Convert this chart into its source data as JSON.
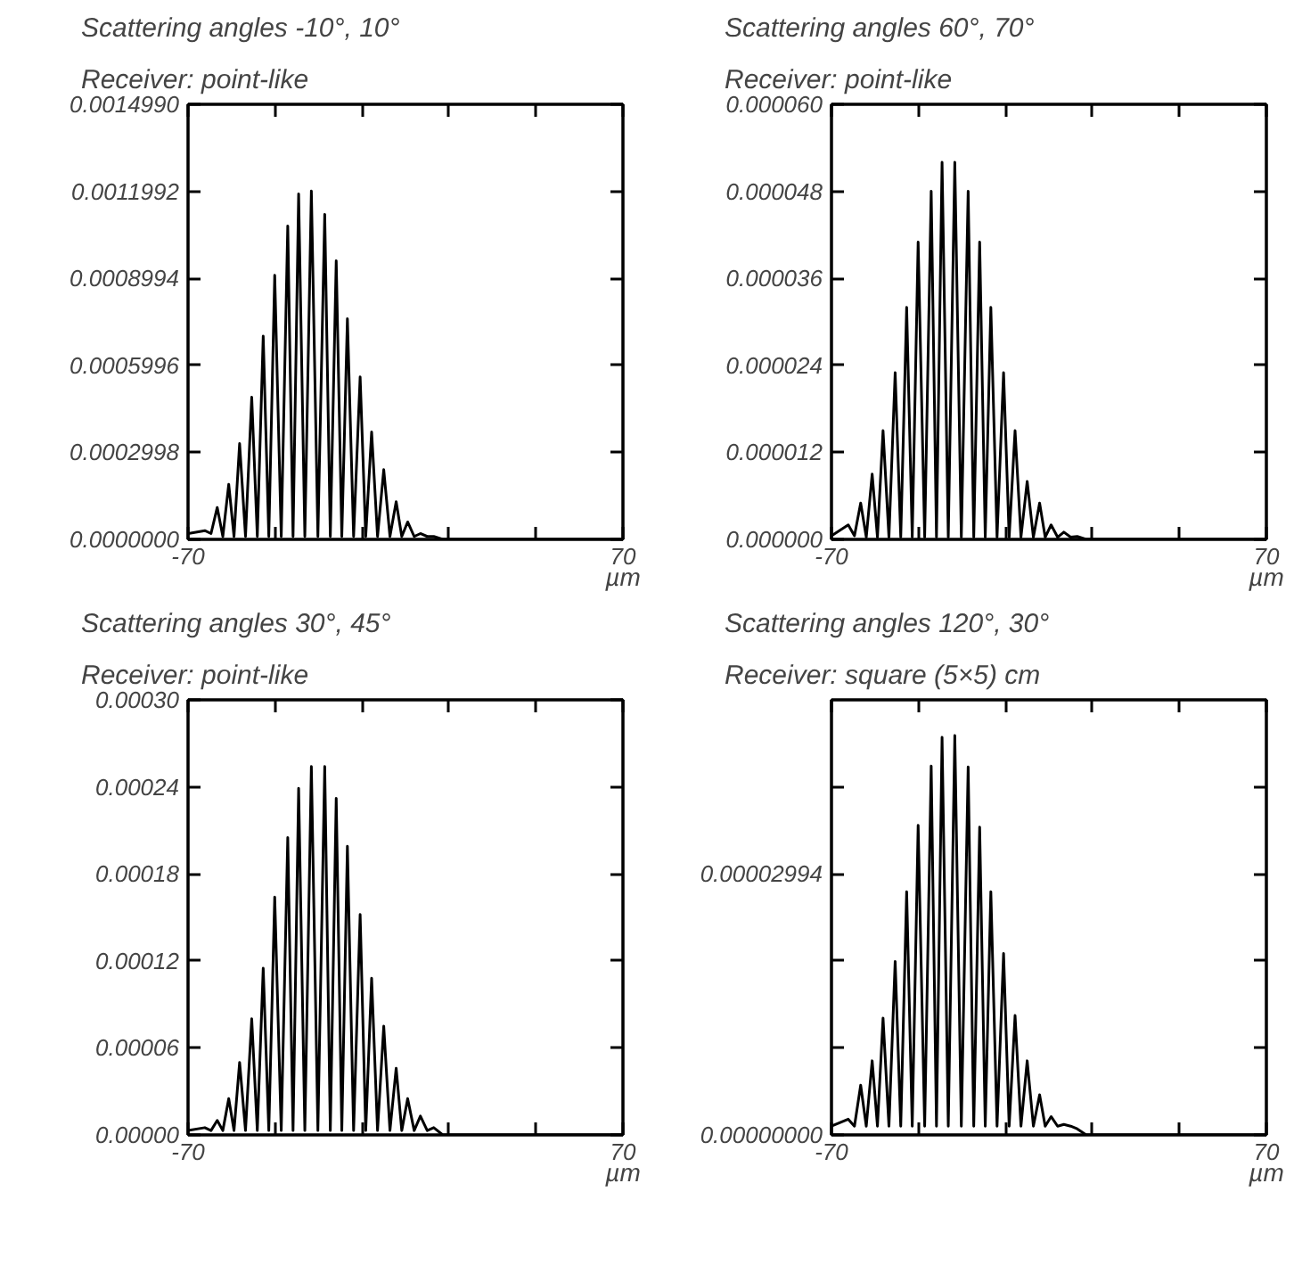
{
  "chart_data": [
    {
      "type": "line",
      "title": "Scattering angles -10°, 10°",
      "subtitle": "Receiver: point-like",
      "xlabel": "µm",
      "color": "#000000",
      "x": [
        -70,
        -64.6,
        -62.6,
        -60.6,
        -58.8,
        -56.9,
        -55.2,
        -53.4,
        -51.5,
        -49.5,
        -47.7,
        -45.8,
        -44.0,
        -42.1,
        -40.0,
        -37.9,
        -36.2,
        -34.4,
        -32.4,
        -30.3,
        -28.2,
        -26.0,
        -24.2,
        -22.3,
        -20.5,
        -18.7,
        -16.7,
        -14.6,
        -12.8,
        -10.9,
        -9.0,
        -7.0,
        -5.0,
        -3.0,
        -1.2,
        0.7,
        2.8,
        4.8,
        7.0,
        9.1,
        12,
        70
      ],
      "values": [
        2e-05,
        3e-05,
        2e-05,
        0.00011,
        1e-05,
        0.00019,
        1e-05,
        0.00033,
        1e-05,
        0.00049,
        1e-05,
        0.0007,
        1e-05,
        0.00091,
        1e-05,
        0.00108,
        1e-05,
        0.00119,
        1e-05,
        0.0012,
        1e-05,
        0.00112,
        1e-05,
        0.00096,
        1e-05,
        0.00076,
        1e-05,
        0.00056,
        1e-05,
        0.00037,
        1e-05,
        0.00024,
        1e-05,
        0.00013,
        1e-05,
        6e-05,
        1e-05,
        2e-05,
        1e-05,
        1e-05,
        0,
        0
      ],
      "xlim": [
        -70,
        70
      ],
      "xticks": [
        -70,
        {
          "value": -42,
          "label": null
        },
        {
          "value": -14,
          "label": null
        },
        {
          "value": 14,
          "label": null
        },
        {
          "value": 42,
          "label": null
        },
        70
      ],
      "ylim": [
        0,
        0.001499
      ],
      "yticks": [
        {
          "value": 0,
          "label": "0.0000000"
        },
        {
          "value": 0.0002998,
          "label": "0.0002998"
        },
        {
          "value": 0.0005996,
          "label": "0.0005996"
        },
        {
          "value": 0.0008994,
          "label": "0.0008994"
        },
        {
          "value": 0.0011992,
          "label": "0.0011992"
        },
        {
          "value": 0.001499,
          "label": "0.0014990"
        }
      ]
    },
    {
      "type": "line",
      "title": "Scattering angles 60°, 70°",
      "subtitle": "Receiver: point-like",
      "xlabel": "µm",
      "color": "#000000",
      "x": [
        -70,
        -64.6,
        -62.6,
        -60.6,
        -58.8,
        -56.9,
        -55.2,
        -53.4,
        -51.5,
        -49.5,
        -47.7,
        -45.8,
        -44.0,
        -42.1,
        -40.0,
        -37.9,
        -36.2,
        -34.4,
        -32.4,
        -30.3,
        -28.2,
        -26.0,
        -24.2,
        -22.3,
        -20.5,
        -18.7,
        -16.7,
        -14.6,
        -12.8,
        -10.9,
        -9.0,
        -7.0,
        -5.0,
        -3.0,
        -1.2,
        0.7,
        2.8,
        4.8,
        7.0,
        9.1,
        12,
        70
      ],
      "values": [
        5e-07,
        2e-06,
        5e-07,
        5e-06,
        3e-07,
        9e-06,
        3e-07,
        1.5e-05,
        3e-07,
        2.3e-05,
        3e-07,
        3.2e-05,
        3e-07,
        4.1e-05,
        3e-07,
        4.8e-05,
        3e-07,
        5.2e-05,
        3e-07,
        5.2e-05,
        3e-07,
        4.8e-05,
        3e-07,
        4.1e-05,
        3e-07,
        3.2e-05,
        3e-07,
        2.3e-05,
        3e-07,
        1.5e-05,
        3e-07,
        8e-06,
        3e-07,
        5e-06,
        3e-07,
        2e-06,
        3e-07,
        1e-06,
        3e-07,
        4e-07,
        0,
        0
      ],
      "xlim": [
        -70,
        70
      ],
      "xticks": [
        -70,
        {
          "value": -42,
          "label": null
        },
        {
          "value": -14,
          "label": null
        },
        {
          "value": 14,
          "label": null
        },
        {
          "value": 42,
          "label": null
        },
        70
      ],
      "ylim": [
        0,
        6e-05
      ],
      "yticks": [
        {
          "value": 0,
          "label": "0.000000"
        },
        {
          "value": 1.2e-05,
          "label": "0.000012"
        },
        {
          "value": 2.4e-05,
          "label": "0.000024"
        },
        {
          "value": 3.6e-05,
          "label": "0.000036"
        },
        {
          "value": 4.8e-05,
          "label": "0.000048"
        },
        {
          "value": 6e-05,
          "label": "0.000060"
        }
      ]
    },
    {
      "type": "line",
      "title": "Scattering angles 30°, 45°",
      "subtitle": "Receiver: point-like",
      "xlabel": "µm",
      "color": "#000000",
      "x": [
        -70,
        -64.6,
        -62.6,
        -60.6,
        -58.8,
        -56.9,
        -55.2,
        -53.4,
        -51.5,
        -49.5,
        -47.7,
        -45.8,
        -44.0,
        -42.1,
        -40.0,
        -37.9,
        -36.2,
        -34.4,
        -32.4,
        -30.3,
        -28.2,
        -26.0,
        -24.2,
        -22.3,
        -20.5,
        -18.7,
        -16.7,
        -14.6,
        -12.8,
        -10.9,
        -9.0,
        -7.0,
        -5.0,
        -3.0,
        -1.2,
        0.7,
        2.8,
        4.8,
        7.0,
        9.1,
        12,
        70
      ],
      "values": [
        3e-06,
        5e-06,
        3e-06,
        1e-05,
        3e-06,
        2.5e-05,
        3e-06,
        5e-05,
        3e-06,
        8e-05,
        3e-06,
        0.000115,
        3e-06,
        0.000164,
        3e-06,
        0.000205,
        3e-06,
        0.000239,
        3e-06,
        0.000254,
        3e-06,
        0.000254,
        3e-06,
        0.000232,
        3e-06,
        0.000199,
        3e-06,
        0.000152,
        3e-06,
        0.000108,
        3e-06,
        7.5e-05,
        3e-06,
        4.6e-05,
        3e-06,
        2.5e-05,
        3e-06,
        1.3e-05,
        3e-06,
        5e-06,
        0,
        0
      ],
      "xlim": [
        -70,
        70
      ],
      "xticks": [
        -70,
        {
          "value": -42,
          "label": null
        },
        {
          "value": -14,
          "label": null
        },
        {
          "value": 14,
          "label": null
        },
        {
          "value": 42,
          "label": null
        },
        70
      ],
      "ylim": [
        0,
        0.0003
      ],
      "yticks": [
        {
          "value": 0,
          "label": "0.00000"
        },
        {
          "value": 6e-05,
          "label": "0.00006"
        },
        {
          "value": 0.00012,
          "label": "0.00012"
        },
        {
          "value": 0.00018,
          "label": "0.00018"
        },
        {
          "value": 0.00024,
          "label": "0.00024"
        },
        {
          "value": 0.0003,
          "label": "0.00030"
        }
      ]
    },
    {
      "type": "line",
      "title": "Scattering angles 120°, 30°",
      "subtitle": "Receiver: square (5×5) cm",
      "xlabel": "µm",
      "color": "#000000",
      "x": [
        -70,
        -64.6,
        -62.6,
        -60.6,
        -58.8,
        -56.9,
        -55.2,
        -53.4,
        -51.5,
        -49.5,
        -47.7,
        -45.8,
        -44.0,
        -42.1,
        -40.0,
        -37.9,
        -36.2,
        -34.4,
        -32.4,
        -30.3,
        -28.2,
        -26.0,
        -24.2,
        -22.3,
        -20.5,
        -18.7,
        -16.7,
        -14.6,
        -12.8,
        -10.9,
        -9.0,
        -7.0,
        -5.0,
        -3.0,
        -1.2,
        0.7,
        2.8,
        4.8,
        7.0,
        9.1,
        12,
        70
      ],
      "values": [
        1e-06,
        1.8e-06,
        1e-06,
        5.7e-06,
        1e-06,
        8.5e-06,
        1e-06,
        1.34e-05,
        1e-06,
        1.99e-05,
        1e-06,
        2.79e-05,
        1e-06,
        3.55e-05,
        1e-06,
        4.23e-05,
        1e-06,
        4.56e-05,
        1e-06,
        4.58e-05,
        1e-06,
        4.22e-05,
        1e-06,
        3.53e-05,
        1e-06,
        2.79e-05,
        1e-06,
        2.08e-05,
        1e-06,
        1.37e-05,
        1e-06,
        8.5e-06,
        1e-06,
        4.6e-06,
        1e-06,
        2.1e-06,
        1e-06,
        1.2e-06,
        1e-06,
        7e-07,
        0,
        0
      ],
      "xlim": [
        -70,
        70
      ],
      "xticks": [
        -70,
        {
          "value": -42,
          "label": null
        },
        {
          "value": -14,
          "label": null
        },
        {
          "value": 14,
          "label": null
        },
        {
          "value": 42,
          "label": null
        },
        70
      ],
      "ylim": [
        0,
        4.99e-05
      ],
      "yticks": [
        {
          "value": 0,
          "label": "0.00000000"
        },
        {
          "value": 9.98e-06,
          "label": null
        },
        {
          "value": 1.996e-05,
          "label": null
        },
        {
          "value": 2.994e-05,
          "label": "0.00002994"
        },
        {
          "value": 3.992e-05,
          "label": null
        }
      ]
    }
  ]
}
